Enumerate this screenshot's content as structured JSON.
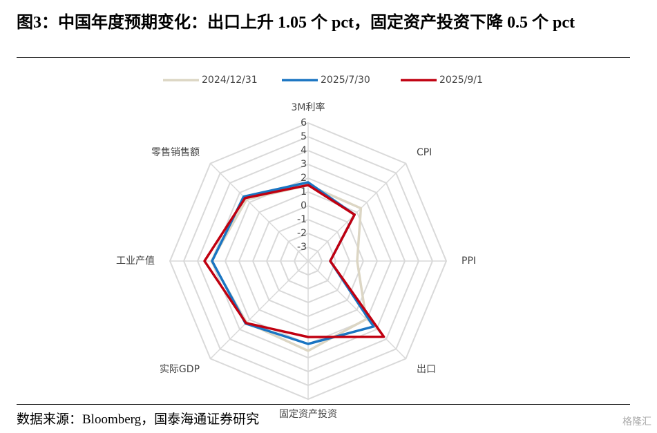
{
  "chart_data": {
    "type": "radar",
    "title": "图3：中国年度预期变化：出口上升 1.05 个 pct，固定资产投资下降 0.5 个 pct",
    "source": "数据来源：Bloomberg，国泰海通证券研究",
    "watermark": "格隆汇",
    "categories": [
      "3M利率",
      "CPI",
      "PPI",
      "出口",
      "固定资产投资",
      "实际GDP",
      "工业产值",
      "零售销售额"
    ],
    "rlim": [
      -4,
      6
    ],
    "rticks": [
      -3,
      -2,
      -1,
      0,
      1,
      2,
      3,
      4,
      5,
      6
    ],
    "series": [
      {
        "name": "2024/12/31",
        "color": "#dcd6c4",
        "values": [
          1.5,
          1.4,
          -0.45,
          1.95,
          2.5,
          2.3,
          3.0,
          2.3
        ]
      },
      {
        "name": "2025/7/30",
        "color": "#1a75c2",
        "values": [
          1.7,
          0.75,
          -2.4,
          2.7,
          2.0,
          2.4,
          2.95,
          2.6
        ]
      },
      {
        "name": "2025/9/1",
        "color": "#c00010",
        "values": [
          1.5,
          0.75,
          -2.4,
          3.75,
          1.5,
          2.35,
          3.5,
          2.45
        ]
      }
    ]
  }
}
